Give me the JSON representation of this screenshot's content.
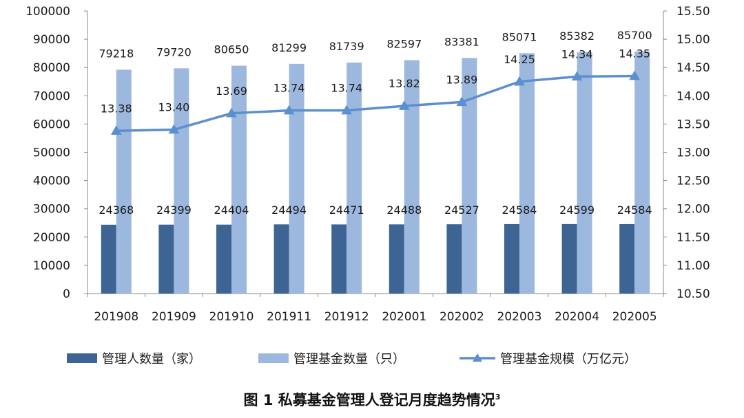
{
  "caption": {
    "text": "图 1  私募基金管理人登记月度趋势情况",
    "footnote": "3"
  },
  "chart_data": {
    "type": "bar",
    "categories": [
      "201908",
      "201909",
      "201910",
      "201911",
      "201912",
      "202001",
      "202002",
      "202003",
      "202004",
      "202005"
    ],
    "series": [
      {
        "name": "管理人数量（家）",
        "type": "bar",
        "axis": "left",
        "color": "#3e6494",
        "values": [
          24368,
          24399,
          24404,
          24494,
          24471,
          24488,
          24527,
          24584,
          24599,
          24584
        ]
      },
      {
        "name": "管理基金数量（只）",
        "type": "bar",
        "axis": "left",
        "color": "#9cb8de",
        "values": [
          79218,
          79720,
          80650,
          81299,
          81739,
          82597,
          83381,
          85071,
          85382,
          85700
        ]
      },
      {
        "name": "管理基金规模（万亿元）",
        "type": "line",
        "marker": "triangle",
        "axis": "right",
        "color": "#5b8fd0",
        "values": [
          13.38,
          13.4,
          13.69,
          13.74,
          13.74,
          13.82,
          13.89,
          14.25,
          14.34,
          14.35
        ]
      }
    ],
    "left_axis": {
      "ylim": [
        0,
        100000
      ],
      "ticks": [
        "0",
        "10000",
        "20000",
        "30000",
        "40000",
        "50000",
        "60000",
        "70000",
        "80000",
        "90000",
        "100000"
      ]
    },
    "right_axis": {
      "ylim": [
        10.5,
        15.5
      ],
      "ticks": [
        "10.50",
        "11.00",
        "11.50",
        "12.00",
        "12.50",
        "13.00",
        "13.50",
        "14.00",
        "14.50",
        "15.00",
        "15.50"
      ]
    },
    "line_labels": [
      "13.38",
      "13.40",
      "13.69",
      "13.74",
      "13.74",
      "13.82",
      "13.89",
      "14.25",
      "14.34",
      "14.35"
    ],
    "grid": false,
    "legend_position": "bottom"
  }
}
